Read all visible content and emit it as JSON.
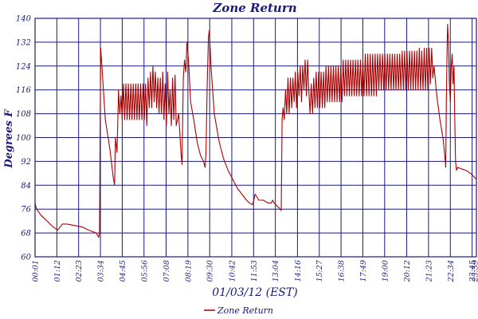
{
  "chart_data": {
    "type": "line",
    "title": "Zone Return",
    "xlabel": "01/03/12 (EST)",
    "ylabel": "Degrees F",
    "ylim": [
      60,
      140
    ],
    "xlim": [
      "00:01",
      "23:59"
    ],
    "yticks": [
      60,
      68,
      76,
      84,
      92,
      100,
      108,
      116,
      124,
      132,
      140
    ],
    "xticks": [
      "00:01",
      "01:12",
      "02:23",
      "03:34",
      "04:45",
      "05:56",
      "07:08",
      "08:19",
      "09:30",
      "10:42",
      "11:53",
      "13:04",
      "14:16",
      "15:27",
      "16:38",
      "17:49",
      "19:00",
      "20:12",
      "21:23",
      "22:34",
      "23:45",
      "23:59"
    ],
    "grid": true,
    "legend": "bottom-center",
    "colors": {
      "series": "#aa0000",
      "grid": "#1a1a7a",
      "text": "#1a1a7a"
    },
    "series": [
      {
        "name": "Zone Return",
        "points": [
          [
            "00:01",
            78
          ],
          [
            "00:06",
            76
          ],
          [
            "00:20",
            74
          ],
          [
            "00:40",
            72
          ],
          [
            "01:00",
            70
          ],
          [
            "01:15",
            69
          ],
          [
            "01:30",
            71
          ],
          [
            "01:45",
            71
          ],
          [
            "02:10",
            70.5
          ],
          [
            "02:35",
            70
          ],
          [
            "02:55",
            69
          ],
          [
            "03:20",
            68
          ],
          [
            "03:29",
            66.5
          ],
          [
            "03:31",
            68
          ],
          [
            "03:33",
            104
          ],
          [
            "03:35",
            130
          ],
          [
            "03:40",
            122
          ],
          [
            "03:50",
            106
          ],
          [
            "04:05",
            96
          ],
          [
            "04:15",
            87
          ],
          [
            "04:20",
            84
          ],
          [
            "04:23",
            100
          ],
          [
            "04:28",
            95
          ],
          [
            "04:33",
            116
          ],
          [
            "04:37",
            108
          ],
          [
            "04:41",
            114
          ],
          [
            "04:45",
            106
          ],
          [
            "04:49",
            118
          ],
          [
            "04:53",
            106
          ],
          [
            "04:57",
            118
          ],
          [
            "05:01",
            106
          ],
          [
            "05:05",
            118
          ],
          [
            "05:09",
            106
          ],
          [
            "05:13",
            118
          ],
          [
            "05:17",
            106
          ],
          [
            "05:21",
            118
          ],
          [
            "05:25",
            106
          ],
          [
            "05:29",
            118
          ],
          [
            "05:33",
            106
          ],
          [
            "05:37",
            118
          ],
          [
            "05:41",
            106
          ],
          [
            "05:45",
            118
          ],
          [
            "05:49",
            106
          ],
          [
            "05:53",
            118
          ],
          [
            "05:57",
            106
          ],
          [
            "06:01",
            118
          ],
          [
            "06:05",
            104
          ],
          [
            "06:09",
            120
          ],
          [
            "06:13",
            110
          ],
          [
            "06:17",
            122
          ],
          [
            "06:21",
            110
          ],
          [
            "06:25",
            124
          ],
          [
            "06:29",
            112
          ],
          [
            "06:33",
            122
          ],
          [
            "06:37",
            110
          ],
          [
            "06:41",
            120
          ],
          [
            "06:45",
            108
          ],
          [
            "06:49",
            120
          ],
          [
            "06:53",
            108
          ],
          [
            "06:57",
            122
          ],
          [
            "07:01",
            106
          ],
          [
            "07:05",
            118
          ],
          [
            "07:09",
            104
          ],
          [
            "07:13",
            122
          ],
          [
            "07:17",
            108
          ],
          [
            "07:21",
            116
          ],
          [
            "07:25",
            104
          ],
          [
            "07:29",
            120
          ],
          [
            "07:33",
            106
          ],
          [
            "07:37",
            121
          ],
          [
            "07:41",
            104
          ],
          [
            "07:49",
            108
          ],
          [
            "07:57",
            94
          ],
          [
            "08:00",
            91
          ],
          [
            "08:04",
            120
          ],
          [
            "08:08",
            126
          ],
          [
            "08:12",
            122
          ],
          [
            "08:16",
            132
          ],
          [
            "08:21",
            126
          ],
          [
            "08:28",
            112
          ],
          [
            "08:38",
            106
          ],
          [
            "08:50",
            98
          ],
          [
            "09:00",
            94
          ],
          [
            "09:10",
            92
          ],
          [
            "09:15",
            90
          ],
          [
            "09:18",
            95
          ],
          [
            "09:22",
            118
          ],
          [
            "09:26",
            134
          ],
          [
            "09:29",
            136
          ],
          [
            "09:34",
            124
          ],
          [
            "09:45",
            108
          ],
          [
            "10:00",
            99
          ],
          [
            "10:15",
            93
          ],
          [
            "10:30",
            89
          ],
          [
            "10:45",
            86
          ],
          [
            "11:00",
            83
          ],
          [
            "11:15",
            81
          ],
          [
            "11:30",
            79
          ],
          [
            "11:40",
            78
          ],
          [
            "11:49",
            77.5
          ],
          [
            "11:54",
            79
          ],
          [
            "11:58",
            81
          ],
          [
            "12:10",
            79
          ],
          [
            "12:25",
            79
          ],
          [
            "12:40",
            78
          ],
          [
            "12:50",
            78
          ],
          [
            "12:55",
            79
          ],
          [
            "13:00",
            78
          ],
          [
            "13:10",
            77
          ],
          [
            "13:20",
            76
          ],
          [
            "13:23",
            75.5
          ],
          [
            "13:26",
            106
          ],
          [
            "13:29",
            110
          ],
          [
            "13:33",
            106
          ],
          [
            "13:37",
            116
          ],
          [
            "13:41",
            108
          ],
          [
            "13:45",
            120
          ],
          [
            "13:49",
            108
          ],
          [
            "13:53",
            120
          ],
          [
            "13:57",
            110
          ],
          [
            "14:01",
            120
          ],
          [
            "14:05",
            112
          ],
          [
            "14:09",
            122
          ],
          [
            "14:13",
            110
          ],
          [
            "14:17",
            122
          ],
          [
            "14:21",
            114
          ],
          [
            "14:25",
            124
          ],
          [
            "14:29",
            112
          ],
          [
            "14:33",
            124
          ],
          [
            "14:37",
            116
          ],
          [
            "14:41",
            126
          ],
          [
            "14:45",
            114
          ],
          [
            "14:49",
            126
          ],
          [
            "14:53",
            116
          ],
          [
            "14:57",
            108
          ],
          [
            "15:01",
            118
          ],
          [
            "15:05",
            108
          ],
          [
            "15:09",
            120
          ],
          [
            "15:13",
            110
          ],
          [
            "15:17",
            122
          ],
          [
            "15:21",
            110
          ],
          [
            "15:25",
            122
          ],
          [
            "15:29",
            110
          ],
          [
            "15:33",
            122
          ],
          [
            "15:37",
            110
          ],
          [
            "15:41",
            122
          ],
          [
            "15:45",
            110
          ],
          [
            "15:49",
            124
          ],
          [
            "15:53",
            112
          ],
          [
            "15:57",
            124
          ],
          [
            "16:01",
            112
          ],
          [
            "16:05",
            124
          ],
          [
            "16:09",
            112
          ],
          [
            "16:13",
            124
          ],
          [
            "16:17",
            112
          ],
          [
            "16:21",
            124
          ],
          [
            "16:25",
            112
          ],
          [
            "16:29",
            124
          ],
          [
            "16:33",
            112
          ],
          [
            "16:37",
            124
          ],
          [
            "16:41",
            112
          ],
          [
            "16:45",
            126
          ],
          [
            "16:49",
            114
          ],
          [
            "16:53",
            126
          ],
          [
            "16:57",
            114
          ],
          [
            "17:01",
            126
          ],
          [
            "17:05",
            114
          ],
          [
            "17:09",
            126
          ],
          [
            "17:13",
            114
          ],
          [
            "17:17",
            126
          ],
          [
            "17:21",
            114
          ],
          [
            "17:25",
            126
          ],
          [
            "17:29",
            114
          ],
          [
            "17:33",
            126
          ],
          [
            "17:37",
            114
          ],
          [
            "17:41",
            126
          ],
          [
            "17:45",
            114
          ],
          [
            "17:49",
            126
          ],
          [
            "17:53",
            114
          ],
          [
            "17:57",
            128
          ],
          [
            "18:01",
            114
          ],
          [
            "18:05",
            128
          ],
          [
            "18:09",
            114
          ],
          [
            "18:13",
            128
          ],
          [
            "18:17",
            114
          ],
          [
            "18:21",
            128
          ],
          [
            "18:25",
            114
          ],
          [
            "18:29",
            128
          ],
          [
            "18:33",
            114
          ],
          [
            "18:37",
            128
          ],
          [
            "18:41",
            116
          ],
          [
            "18:45",
            128
          ],
          [
            "18:49",
            116
          ],
          [
            "18:53",
            128
          ],
          [
            "18:57",
            116
          ],
          [
            "19:01",
            128
          ],
          [
            "19:05",
            116
          ],
          [
            "19:09",
            128
          ],
          [
            "19:13",
            116
          ],
          [
            "19:17",
            128
          ],
          [
            "19:21",
            116
          ],
          [
            "19:25",
            128
          ],
          [
            "19:29",
            116
          ],
          [
            "19:33",
            128
          ],
          [
            "19:37",
            116
          ],
          [
            "19:41",
            128
          ],
          [
            "19:45",
            116
          ],
          [
            "19:49",
            128
          ],
          [
            "19:53",
            116
          ],
          [
            "19:57",
            129
          ],
          [
            "20:01",
            116
          ],
          [
            "20:05",
            129
          ],
          [
            "20:09",
            116
          ],
          [
            "20:13",
            129
          ],
          [
            "20:17",
            116
          ],
          [
            "20:21",
            129
          ],
          [
            "20:25",
            116
          ],
          [
            "20:29",
            129
          ],
          [
            "20:33",
            116
          ],
          [
            "20:37",
            129
          ],
          [
            "20:41",
            116
          ],
          [
            "20:45",
            129
          ],
          [
            "20:49",
            116
          ],
          [
            "20:53",
            130
          ],
          [
            "20:57",
            116
          ],
          [
            "21:01",
            129
          ],
          [
            "21:05",
            116
          ],
          [
            "21:09",
            130
          ],
          [
            "21:13",
            116
          ],
          [
            "21:17",
            130
          ],
          [
            "21:21",
            116
          ],
          [
            "21:25",
            130
          ],
          [
            "21:29",
            118
          ],
          [
            "21:33",
            130
          ],
          [
            "21:37",
            120
          ],
          [
            "21:41",
            124
          ],
          [
            "21:50",
            114
          ],
          [
            "22:00",
            106
          ],
          [
            "22:10",
            100
          ],
          [
            "22:16",
            94
          ],
          [
            "22:19",
            90
          ],
          [
            "22:21",
            110
          ],
          [
            "22:23",
            126
          ],
          [
            "22:25",
            138
          ],
          [
            "22:28",
            132
          ],
          [
            "22:31",
            118
          ],
          [
            "22:34",
            112
          ],
          [
            "22:37",
            124
          ],
          [
            "22:40",
            128
          ],
          [
            "22:43",
            118
          ],
          [
            "22:46",
            124
          ],
          [
            "22:48",
            110
          ],
          [
            "22:51",
            92
          ],
          [
            "22:54",
            89
          ],
          [
            "22:58",
            90
          ],
          [
            "23:10",
            89.5
          ],
          [
            "23:25",
            89
          ],
          [
            "23:40",
            88
          ],
          [
            "23:50",
            87
          ],
          [
            "23:59",
            86
          ]
        ]
      }
    ]
  }
}
